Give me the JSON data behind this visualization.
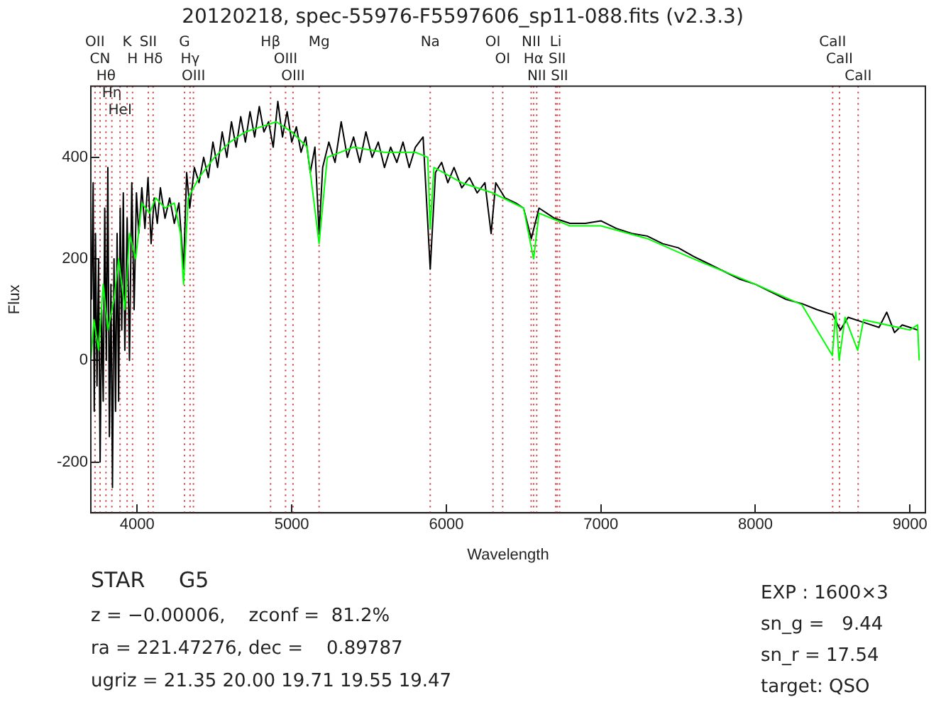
{
  "chart_data": {
    "type": "line",
    "title": "20120218, spec-55976-F5597606_sp11-088.fits (v2.3.3)",
    "xlabel": "Wavelength",
    "ylabel": "Flux",
    "xlim": [
      3700,
      9100
    ],
    "ylim": [
      -300,
      540
    ],
    "xticks": [
      4000,
      5000,
      6000,
      7000,
      8000,
      9000
    ],
    "yticks": [
      -200,
      0,
      200,
      400
    ],
    "grid": false,
    "legend": false,
    "marker": "none",
    "series": [
      {
        "color": "#000000",
        "x": [
          3705,
          3715,
          3722,
          3730,
          3740,
          3750,
          3760,
          3770,
          3780,
          3790,
          3800,
          3810,
          3820,
          3830,
          3840,
          3850,
          3860,
          3870,
          3880,
          3890,
          3900,
          3910,
          3920,
          3935,
          3950,
          3965,
          3980,
          3995,
          4010,
          4030,
          4050,
          4070,
          4090,
          4110,
          4130,
          4150,
          4180,
          4210,
          4240,
          4270,
          4300,
          4320,
          4340,
          4370,
          4400,
          4430,
          4460,
          4490,
          4520,
          4550,
          4580,
          4610,
          4640,
          4670,
          4700,
          4730,
          4760,
          4790,
          4820,
          4850,
          4880,
          4910,
          4940,
          4970,
          5000,
          5030,
          5060,
          5090,
          5120,
          5150,
          5177,
          5200,
          5240,
          5280,
          5320,
          5360,
          5400,
          5440,
          5480,
          5520,
          5560,
          5600,
          5640,
          5680,
          5720,
          5760,
          5800,
          5850,
          5896,
          5930,
          5970,
          6010,
          6050,
          6100,
          6150,
          6200,
          6250,
          6290,
          6320,
          6380,
          6450,
          6500,
          6550,
          6600,
          6650,
          6700,
          6800,
          6900,
          7000,
          7100,
          7200,
          7300,
          7400,
          7500,
          7600,
          7700,
          7800,
          7900,
          8000,
          8100,
          8200,
          8300,
          8400,
          8500,
          8550,
          8600,
          8700,
          8800,
          8850,
          8900,
          8950,
          9000,
          9050
        ],
        "values": [
          120,
          350,
          -100,
          250,
          -50,
          200,
          -200,
          100,
          -80,
          300,
          0,
          380,
          -150,
          150,
          -250,
          200,
          -100,
          250,
          -80,
          300,
          60,
          330,
          20,
          280,
          0,
          350,
          100,
          330,
          250,
          340,
          260,
          360,
          230,
          320,
          270,
          340,
          280,
          320,
          270,
          310,
          180,
          370,
          300,
          380,
          350,
          400,
          360,
          430,
          380,
          450,
          400,
          470,
          420,
          480,
          430,
          490,
          440,
          500,
          450,
          470,
          420,
          510,
          440,
          490,
          430,
          460,
          410,
          440,
          370,
          420,
          250,
          380,
          430,
          390,
          470,
          400,
          440,
          390,
          450,
          400,
          430,
          380,
          420,
          390,
          430,
          380,
          420,
          440,
          180,
          370,
          390,
          350,
          380,
          340,
          360,
          330,
          350,
          250,
          350,
          320,
          310,
          300,
          240,
          300,
          290,
          280,
          270,
          270,
          275,
          260,
          250,
          245,
          230,
          222,
          205,
          190,
          175,
          160,
          150,
          135,
          120,
          112,
          100,
          90,
          60,
          85,
          75,
          65,
          95,
          55,
          70,
          65,
          60
        ]
      },
      {
        "color": "#00ff00",
        "x": [
          3700,
          3720,
          3750,
          3780,
          3810,
          3850,
          3880,
          3920,
          3950,
          3990,
          4030,
          4080,
          4120,
          4180,
          4240,
          4280,
          4300,
          4330,
          4400,
          4500,
          4600,
          4700,
          4800,
          4900,
          5000,
          5100,
          5177,
          5230,
          5400,
          5600,
          5800,
          5880,
          5896,
          5920,
          6100,
          6300,
          6500,
          6565,
          6600,
          6800,
          7000,
          7300,
          7600,
          8000,
          8300,
          8498,
          8520,
          8542,
          8580,
          8662,
          8700,
          9000,
          9050,
          9060
        ],
        "values": [
          0,
          80,
          20,
          150,
          60,
          120,
          200,
          100,
          250,
          200,
          310,
          290,
          320,
          300,
          310,
          250,
          150,
          320,
          360,
          400,
          430,
          450,
          460,
          470,
          450,
          420,
          230,
          400,
          420,
          410,
          410,
          400,
          260,
          380,
          350,
          330,
          300,
          200,
          290,
          265,
          265,
          240,
          200,
          150,
          110,
          10,
          95,
          0,
          85,
          20,
          80,
          60,
          70,
          0
        ]
      }
    ],
    "ref_lines": [
      {
        "axis": "x",
        "value": 3727,
        "label": "OII",
        "color": "#cc3333",
        "line_style": "dotted"
      },
      {
        "axis": "x",
        "value": 3760,
        "label": "CN",
        "color": "#cc3333",
        "line_style": "dotted"
      },
      {
        "axis": "x",
        "value": 3798,
        "label": "Hθ",
        "color": "#cc3333",
        "line_style": "dotted"
      },
      {
        "axis": "x",
        "value": 3836,
        "label": "Hη",
        "color": "#cc3333",
        "line_style": "dotted"
      },
      {
        "axis": "x",
        "value": 3889,
        "label": "HeI",
        "color": "#cc3333",
        "line_style": "dotted"
      },
      {
        "axis": "x",
        "value": 3935,
        "label": "K",
        "color": "#cc3333",
        "line_style": "dotted"
      },
      {
        "axis": "x",
        "value": 3970,
        "label": "H",
        "color": "#cc3333",
        "line_style": "dotted"
      },
      {
        "axis": "x",
        "value": 4072,
        "label": "SII",
        "color": "#cc3333",
        "line_style": "dotted"
      },
      {
        "axis": "x",
        "value": 4103,
        "label": "Hδ",
        "color": "#cc3333",
        "line_style": "dotted"
      },
      {
        "axis": "x",
        "value": 4306,
        "label": "G",
        "color": "#cc3333",
        "line_style": "dotted"
      },
      {
        "axis": "x",
        "value": 4342,
        "label": "Hγ",
        "color": "#cc3333",
        "line_style": "dotted"
      },
      {
        "axis": "x",
        "value": 4364,
        "label": "OIII",
        "color": "#cc3333",
        "line_style": "dotted"
      },
      {
        "axis": "x",
        "value": 4863,
        "label": "Hβ",
        "color": "#cc3333",
        "line_style": "dotted"
      },
      {
        "axis": "x",
        "value": 4960,
        "label": "OIII",
        "color": "#cc3333",
        "line_style": "dotted"
      },
      {
        "axis": "x",
        "value": 5008,
        "label": "OIII",
        "color": "#cc3333",
        "line_style": "dotted"
      },
      {
        "axis": "x",
        "value": 5177,
        "label": "Mg",
        "color": "#cc3333",
        "line_style": "dotted"
      },
      {
        "axis": "x",
        "value": 5896,
        "label": "Na",
        "color": "#cc3333",
        "line_style": "dotted"
      },
      {
        "axis": "x",
        "value": 6302,
        "label": "OI",
        "color": "#cc3333",
        "line_style": "dotted"
      },
      {
        "axis": "x",
        "value": 6365,
        "label": "OI",
        "color": "#cc3333",
        "line_style": "dotted"
      },
      {
        "axis": "x",
        "value": 6549,
        "label": "NII",
        "color": "#cc3333",
        "line_style": "dotted"
      },
      {
        "axis": "x",
        "value": 6565,
        "label": "Hα",
        "color": "#cc3333",
        "line_style": "dotted"
      },
      {
        "axis": "x",
        "value": 6585,
        "label": "NII",
        "color": "#cc3333",
        "line_style": "dotted"
      },
      {
        "axis": "x",
        "value": 6708,
        "label": "Li",
        "color": "#cc3333",
        "line_style": "dotted"
      },
      {
        "axis": "x",
        "value": 6718,
        "label": "SII",
        "color": "#cc3333",
        "line_style": "dotted"
      },
      {
        "axis": "x",
        "value": 6733,
        "label": "SII",
        "color": "#cc3333",
        "line_style": "dotted"
      },
      {
        "axis": "x",
        "value": 8500,
        "label": "CaII",
        "color": "#cc3333",
        "line_style": "dotted"
      },
      {
        "axis": "x",
        "value": 8544,
        "label": "CaII",
        "color": "#cc3333",
        "line_style": "dotted"
      },
      {
        "axis": "x",
        "value": 8665,
        "label": "CaII",
        "color": "#cc3333",
        "line_style": "dotted"
      }
    ],
    "annotations": [
      "STAR     G5",
      "z = −0.00006,    zconf =  81.2%",
      "ra = 221.47276, dec =    0.89787",
      "ugriz = 21.35 20.00 19.71 19.55 19.47",
      "EXP : 1600×3",
      "sn_g =   9.44",
      "sn_r = 17.54",
      "target: QSO"
    ]
  }
}
